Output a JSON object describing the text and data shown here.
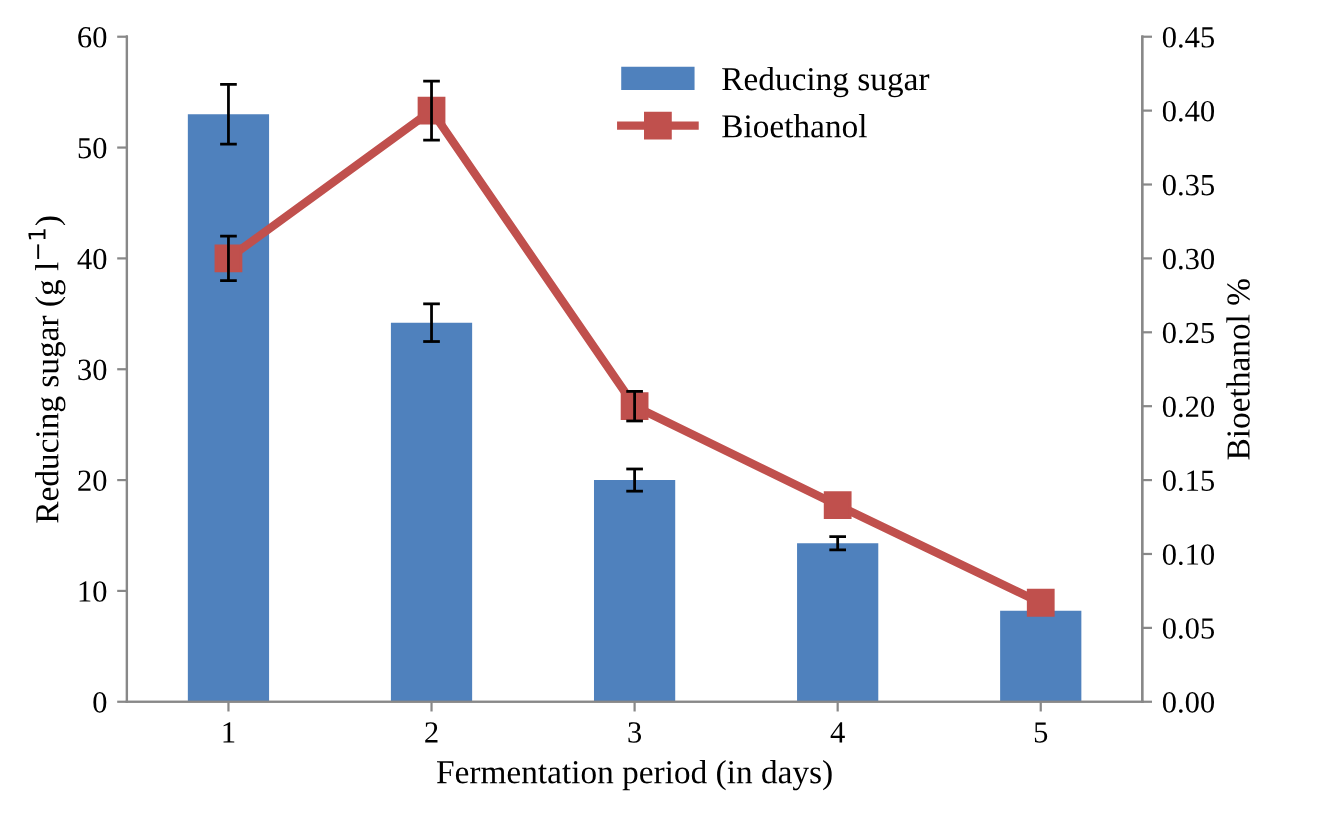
{
  "chart_data": {
    "type": "bar",
    "xlabel": "Fermentation period (in days)",
    "ylabel": "Reducing sugar (g l$^{−1}$)",
    "y2label": "Bioethanol %",
    "categories": [
      "1",
      "2",
      "3",
      "4",
      "5"
    ],
    "series": [
      {
        "name": "Reducing sugar",
        "color": "#4f81bd",
        "values": [
          53,
          34.2,
          20,
          14.3,
          8.2
        ],
        "errors": [
          2.7,
          1.7,
          1,
          0.6,
          null
        ]
      },
      {
        "name": "Bioethanol",
        "type": "line",
        "axis": "y2",
        "color": "#c0504d",
        "values": [
          0.3,
          0.4,
          0.2,
          0.133,
          0.067
        ],
        "errors": [
          0.015,
          0.02,
          0.01,
          null,
          null
        ],
        "marker": "square",
        "line_style": "solid"
      }
    ],
    "ylim": [
      0,
      60
    ],
    "yticks": [
      0,
      10,
      20,
      30,
      40,
      50,
      60
    ],
    "y2lim": [
      0,
      0.45
    ],
    "y2ticks": [
      {
        "value": 0,
        "label": "0.00"
      },
      {
        "value": 0.05,
        "label": "0.05"
      },
      {
        "value": 0.1,
        "label": "0.10"
      },
      {
        "value": 0.15,
        "label": "0.15"
      },
      {
        "value": 0.2,
        "label": "0.20"
      },
      {
        "value": 0.25,
        "label": "0.25"
      },
      {
        "value": 0.3,
        "label": "0.30"
      },
      {
        "value": 0.35,
        "label": "0.35"
      },
      {
        "value": 0.4,
        "label": "0.40"
      },
      {
        "value": 0.45,
        "label": "0.45"
      }
    ],
    "grid": false,
    "legend": "top right"
  }
}
